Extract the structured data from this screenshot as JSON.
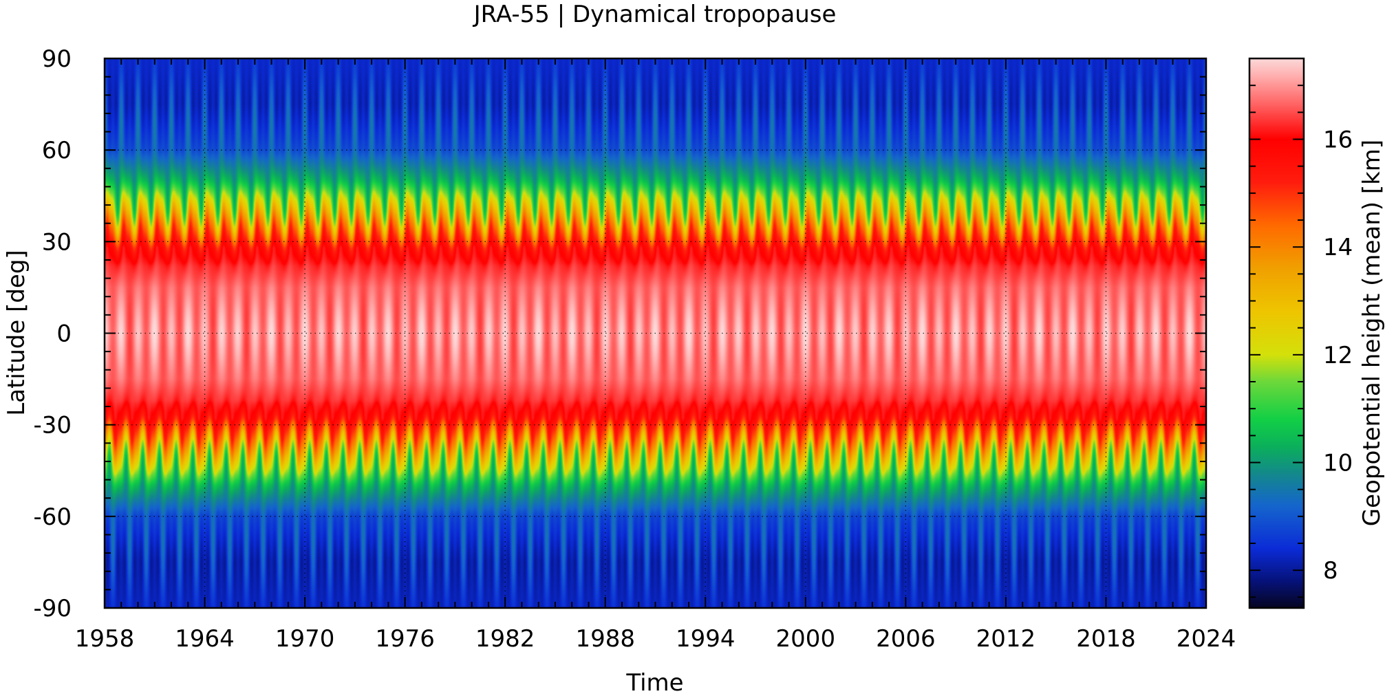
{
  "chart_data": {
    "type": "heatmap",
    "title": "JRA-55 | Dynamical tropopause",
    "xlabel": "Time",
    "ylabel": "Latitude [deg]",
    "xlim": [
      1958,
      2024
    ],
    "ylim": [
      -90,
      90
    ],
    "x_ticks": [
      "1958",
      "1964",
      "1970",
      "1976",
      "1982",
      "1988",
      "1994",
      "2000",
      "2006",
      "2012",
      "2018",
      "2024"
    ],
    "y_ticks": [
      "-90",
      "-60",
      "-30",
      "0",
      "30",
      "60",
      "90"
    ],
    "grid": true,
    "colorbar": {
      "label": "Geopotential height (mean) [km]",
      "range": [
        7.3,
        17.5
      ],
      "ticks": [
        "8",
        "10",
        "12",
        "14",
        "16"
      ],
      "colormap": [
        [
          7.3,
          "#050520"
        ],
        [
          7.8,
          "#06127a"
        ],
        [
          8.4,
          "#0b2bd6"
        ],
        [
          9.2,
          "#1565cc"
        ],
        [
          9.8,
          "#13898a"
        ],
        [
          10.3,
          "#0bb05a"
        ],
        [
          10.8,
          "#12cf46"
        ],
        [
          11.5,
          "#6cd83a"
        ],
        [
          12.0,
          "#d4e00a"
        ],
        [
          12.8,
          "#eec500"
        ],
        [
          13.6,
          "#f0a000"
        ],
        [
          14.4,
          "#ff6a00"
        ],
        [
          15.2,
          "#ff1c0e"
        ],
        [
          16.0,
          "#ff0000"
        ],
        [
          16.6,
          "#ff5c5c"
        ],
        [
          17.2,
          "#ffb2b2"
        ],
        [
          17.5,
          "#fbd9d9"
        ]
      ]
    },
    "field_profile": {
      "latitude": [
        -90,
        -75,
        -60,
        -50,
        -40,
        -33,
        -28,
        -22,
        -15,
        0,
        15,
        22,
        28,
        33,
        40,
        50,
        60,
        75,
        90
      ],
      "height_km": [
        8.3,
        8.4,
        8.9,
        10.3,
        12.5,
        14.3,
        15.6,
        16.3,
        16.7,
        17.0,
        16.7,
        16.3,
        15.6,
        14.3,
        12.5,
        10.3,
        9.0,
        8.5,
        8.4
      ]
    }
  }
}
